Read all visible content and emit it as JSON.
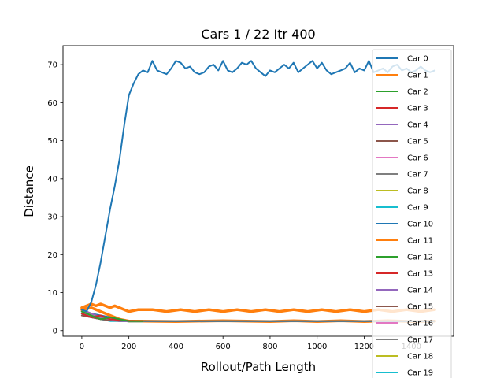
{
  "chart_data": {
    "type": "line",
    "title": "Cars 1 / 22 Itr 400",
    "xlabel": "Rollout/Path Length",
    "ylabel": "Distance",
    "xlim": [
      -80,
      1580
    ],
    "ylim": [
      -1.5,
      75
    ],
    "xticks": [
      0,
      200,
      400,
      600,
      800,
      1000,
      1200,
      1400
    ],
    "yticks": [
      0,
      10,
      20,
      30,
      40,
      50,
      60,
      70
    ],
    "grid": false,
    "legend_position": "top-right",
    "colors": [
      "#1f77b4",
      "#ff7f0e",
      "#2ca02c",
      "#d62728",
      "#9467bd",
      "#8c564b",
      "#e377c2",
      "#7f7f7f",
      "#bcbd22",
      "#17becf"
    ],
    "series": [
      {
        "name": "Car 0",
        "x": [
          0,
          20,
          40,
          60,
          80,
          100,
          120,
          140,
          160,
          180,
          200,
          220,
          240,
          260,
          280,
          300,
          320,
          340,
          360,
          380,
          400,
          420,
          440,
          460,
          480,
          500,
          520,
          540,
          560,
          580,
          600,
          620,
          640,
          660,
          680,
          700,
          720,
          740,
          760,
          780,
          800,
          820,
          840,
          860,
          880,
          900,
          920,
          940,
          960,
          980,
          1000,
          1020,
          1040,
          1060,
          1080,
          1100,
          1120,
          1140,
          1160,
          1180,
          1200,
          1220,
          1240,
          1260,
          1280,
          1300,
          1320,
          1340,
          1360,
          1380,
          1400,
          1420,
          1440,
          1460,
          1480,
          1500
        ],
        "values": [
          5.5,
          5.0,
          7.5,
          12.0,
          18.0,
          25.0,
          32.0,
          38.0,
          45.0,
          54.0,
          62.0,
          65.0,
          67.5,
          68.5,
          68.0,
          71.0,
          68.5,
          68.0,
          67.5,
          69.0,
          71.0,
          70.5,
          69.0,
          69.5,
          68.0,
          67.5,
          68.0,
          69.5,
          70.0,
          68.5,
          71.0,
          68.5,
          68.0,
          69.0,
          70.5,
          70.0,
          71.0,
          69.0,
          68.0,
          67.0,
          68.5,
          68.0,
          69.0,
          70.0,
          69.0,
          70.5,
          68.0,
          69.0,
          70.0,
          71.0,
          69.0,
          70.5,
          68.5,
          67.5,
          68.0,
          68.5,
          69.0,
          70.5,
          68.0,
          69.0,
          68.5,
          71.0,
          68.0,
          68.5,
          69.0,
          68.0,
          69.5,
          70.0,
          68.5,
          69.0,
          68.0,
          68.5,
          69.5,
          68.5,
          68.0,
          68.5
        ]
      },
      {
        "name": "Car 1",
        "x": [
          0,
          20,
          40,
          60,
          80,
          100,
          120,
          140,
          160,
          180,
          200,
          240,
          300,
          360,
          420,
          480,
          540,
          600,
          660,
          720,
          780,
          840,
          900,
          960,
          1020,
          1080,
          1140,
          1200,
          1260,
          1320,
          1380,
          1440,
          1500
        ],
        "values": [
          6.0,
          6.5,
          7.0,
          6.5,
          7.0,
          6.5,
          6.0,
          6.5,
          6.0,
          5.5,
          5.0,
          5.5,
          5.5,
          5.0,
          5.5,
          5.0,
          5.5,
          5.0,
          5.5,
          5.0,
          5.5,
          5.0,
          5.5,
          5.0,
          5.5,
          5.0,
          5.5,
          5.0,
          5.5,
          5.0,
          5.5,
          5.0,
          5.5
        ]
      },
      {
        "name": "Car 2",
        "x": [
          0,
          40,
          80,
          120,
          160,
          200,
          260
        ],
        "values": [
          5.0,
          4.0,
          3.0,
          3.5,
          3.0,
          2.5,
          2.5
        ]
      },
      {
        "name": "Car 3",
        "x": [
          0,
          40,
          80,
          120,
          160,
          200,
          260
        ],
        "values": [
          4.5,
          3.5,
          4.0,
          3.0,
          2.8,
          2.6,
          2.5
        ]
      },
      {
        "name": "Car 4",
        "x": [
          0,
          40,
          80,
          120,
          160,
          200,
          260
        ],
        "values": [
          5.5,
          4.5,
          3.5,
          3.0,
          2.5,
          2.5,
          2.5
        ]
      },
      {
        "name": "Car 5",
        "x": [
          0,
          40,
          80,
          120,
          160,
          200,
          260
        ],
        "values": [
          4.0,
          3.5,
          3.0,
          2.8,
          2.6,
          2.5,
          2.5
        ]
      },
      {
        "name": "Car 6",
        "x": [
          0,
          40,
          80,
          120,
          160,
          200,
          260
        ],
        "values": [
          5.0,
          4.0,
          3.5,
          3.2,
          2.8,
          2.5,
          2.5
        ]
      },
      {
        "name": "Car 7",
        "x": [
          0,
          40,
          80,
          120,
          160,
          200,
          260
        ],
        "values": [
          4.5,
          3.5,
          3.0,
          2.7,
          2.5,
          2.5,
          2.5
        ]
      },
      {
        "name": "Car 8",
        "x": [
          0,
          40,
          80,
          120,
          160,
          200,
          260
        ],
        "values": [
          5.0,
          4.5,
          3.5,
          3.0,
          2.6,
          2.5,
          2.5
        ]
      },
      {
        "name": "Car 9",
        "x": [
          0,
          40,
          80,
          120,
          160,
          180,
          200,
          260
        ],
        "values": [
          4.5,
          4.0,
          3.0,
          2.5,
          2.5,
          2.5,
          2.4,
          2.4
        ]
      },
      {
        "name": "Car 10",
        "x": [
          0,
          40,
          80,
          120,
          160,
          200,
          260,
          400,
          600,
          800,
          1000,
          1200,
          1400,
          1500
        ],
        "values": [
          5.0,
          4.5,
          4.0,
          3.5,
          3.0,
          2.5,
          2.5,
          2.5,
          2.5,
          2.5,
          2.5,
          2.5,
          2.5,
          2.5
        ]
      },
      {
        "name": "Car 11",
        "x": [
          0,
          40,
          80,
          120,
          160,
          200,
          260,
          400,
          600,
          800,
          900,
          1000,
          1100,
          1200,
          1300,
          1400,
          1500
        ],
        "values": [
          5.5,
          6.0,
          5.0,
          4.0,
          3.0,
          2.5,
          2.5,
          2.4,
          2.6,
          2.4,
          2.6,
          2.4,
          2.6,
          2.4,
          2.6,
          2.4,
          2.5
        ]
      },
      {
        "name": "Car 12",
        "x": [
          0,
          40,
          80,
          120,
          160,
          200,
          260
        ],
        "values": [
          4.5,
          4.0,
          3.5,
          3.0,
          2.5,
          2.5,
          2.5
        ]
      },
      {
        "name": "Car 13",
        "x": [
          0,
          40,
          80,
          120,
          160,
          200,
          260
        ],
        "values": [
          5.0,
          4.0,
          3.2,
          2.8,
          2.5,
          2.5,
          2.5
        ]
      },
      {
        "name": "Car 14",
        "x": [
          0,
          40,
          80,
          120,
          160,
          200,
          260
        ],
        "values": [
          4.0,
          3.5,
          3.0,
          2.7,
          2.5,
          2.5,
          2.5
        ]
      },
      {
        "name": "Car 15",
        "x": [
          0,
          40,
          80,
          120,
          160,
          200,
          260
        ],
        "values": [
          5.5,
          4.5,
          3.5,
          3.0,
          2.5,
          2.5,
          2.5
        ]
      },
      {
        "name": "Car 16",
        "x": [
          0,
          40,
          80,
          120,
          160,
          200,
          260
        ],
        "values": [
          4.5,
          4.0,
          3.5,
          3.0,
          2.5,
          2.5,
          2.5
        ]
      },
      {
        "name": "Car 17",
        "x": [
          0,
          40,
          80,
          120,
          160,
          200,
          260
        ],
        "values": [
          5.0,
          4.0,
          3.0,
          2.8,
          2.5,
          2.5,
          2.5
        ]
      },
      {
        "name": "Car 18",
        "x": [
          0,
          40,
          80,
          120,
          160,
          200,
          260
        ],
        "values": [
          4.5,
          3.5,
          3.2,
          2.8,
          2.5,
          2.5,
          2.5
        ]
      },
      {
        "name": "Car 19",
        "x": [
          0,
          40,
          80,
          120,
          160,
          200,
          260
        ],
        "values": [
          5.0,
          4.5,
          3.5,
          3.0,
          2.5,
          2.5,
          2.5
        ]
      }
    ]
  }
}
